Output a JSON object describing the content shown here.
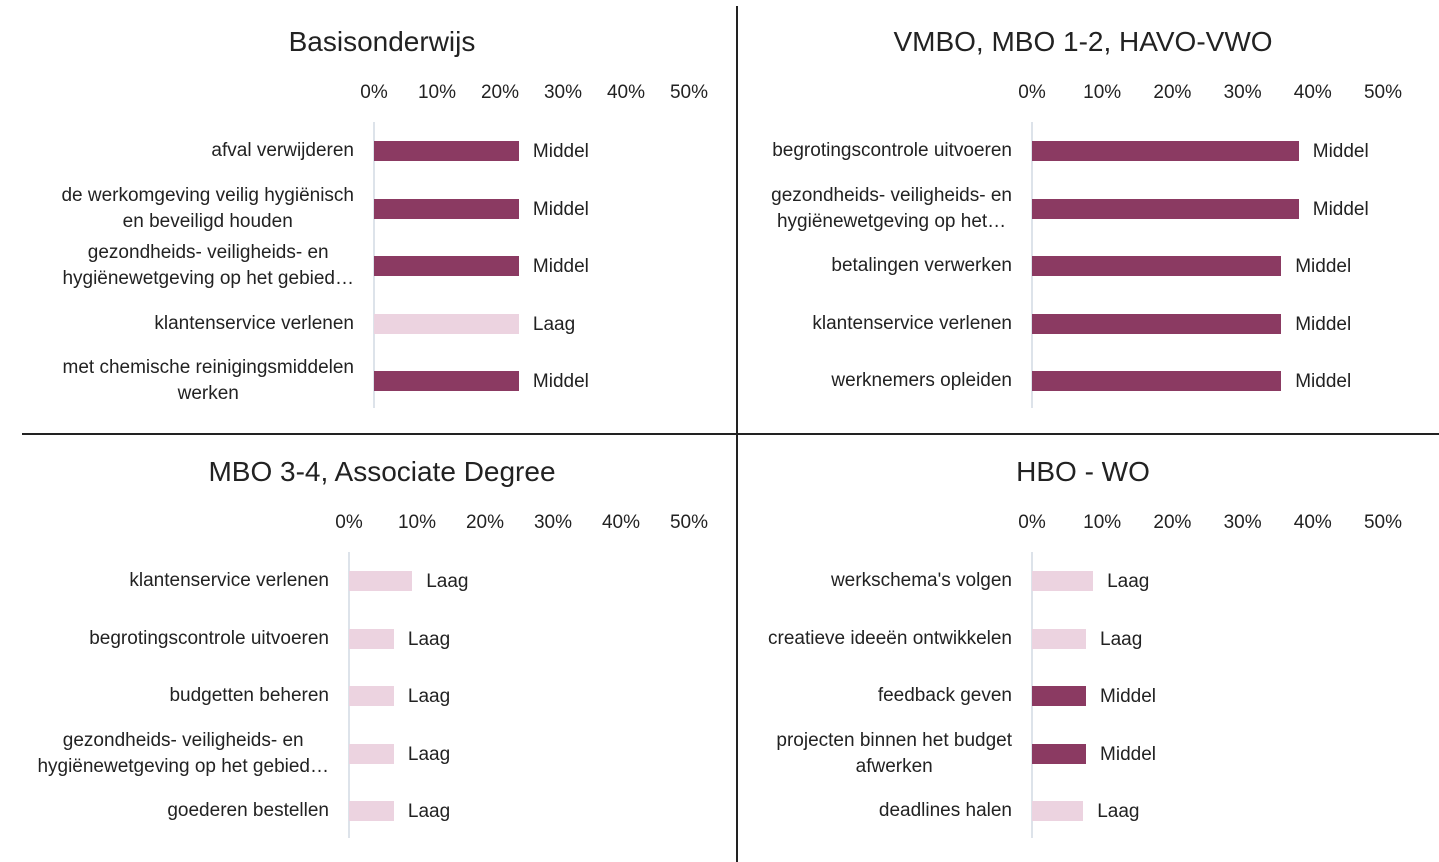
{
  "chart_data": [
    {
      "type": "bar",
      "orientation": "horizontal",
      "title": "Basisonderwijs",
      "categories": [
        "afval verwijderen",
        "de werkomgeving veilig  hygiënisch\nen beveiligd houden",
        "gezondheids-  veiligheids- en\nhygiënewetgeving op het gebied…",
        "klantenservice verlenen",
        "met chemische reinigingsmiddelen\nwerken"
      ],
      "values": [
        23,
        23,
        23,
        23,
        23
      ],
      "value_labels": [
        "Middel",
        "Middel",
        "Middel",
        "Laag",
        "Middel"
      ],
      "colors": [
        "#8b3a62",
        "#8b3a62",
        "#8b3a62",
        "#ecd3e0",
        "#8b3a62"
      ],
      "xlim": [
        0,
        50
      ],
      "xticks": [
        {
          "value": 0,
          "label": "0%"
        },
        {
          "value": 10,
          "label": "10%"
        },
        {
          "value": 20,
          "label": "20%"
        },
        {
          "value": 30,
          "label": "30%"
        },
        {
          "value": 40,
          "label": "40%"
        },
        {
          "value": 50,
          "label": "50%"
        }
      ]
    },
    {
      "type": "bar",
      "orientation": "horizontal",
      "title": "VMBO, MBO 1-2,  HAVO-VWO",
      "categories": [
        "begrotingscontrole uitvoeren",
        "gezondheids-  veiligheids- en\nhygiënewetgeving op het…",
        "betalingen verwerken",
        "klantenservice verlenen",
        "werknemers opleiden"
      ],
      "values": [
        38,
        38,
        35.5,
        35.5,
        35.5
      ],
      "value_labels": [
        "Middel",
        "Middel",
        "Middel",
        "Middel",
        "Middel"
      ],
      "colors": [
        "#8b3a62",
        "#8b3a62",
        "#8b3a62",
        "#8b3a62",
        "#8b3a62"
      ],
      "xlim": [
        0,
        50
      ],
      "xticks": [
        {
          "value": 0,
          "label": "0%"
        },
        {
          "value": 10,
          "label": "10%"
        },
        {
          "value": 20,
          "label": "20%"
        },
        {
          "value": 30,
          "label": "30%"
        },
        {
          "value": 40,
          "label": "40%"
        },
        {
          "value": 50,
          "label": "50%"
        }
      ]
    },
    {
      "type": "bar",
      "orientation": "horizontal",
      "title": "MBO 3-4, Associate Degree",
      "categories": [
        "klantenservice verlenen",
        "begrotingscontrole uitvoeren",
        "budgetten beheren",
        "gezondheids-  veiligheids- en\nhygiënewetgeving op het gebied…",
        "goederen bestellen"
      ],
      "values": [
        9.3,
        6.6,
        6.6,
        6.6,
        6.6
      ],
      "value_labels": [
        "Laag",
        "Laag",
        "Laag",
        "Laag",
        "Laag"
      ],
      "colors": [
        "#ecd3e0",
        "#ecd3e0",
        "#ecd3e0",
        "#ecd3e0",
        "#ecd3e0"
      ],
      "xlim": [
        0,
        50
      ],
      "xticks": [
        {
          "value": 0,
          "label": "0%"
        },
        {
          "value": 10,
          "label": "10%"
        },
        {
          "value": 20,
          "label": "20%"
        },
        {
          "value": 30,
          "label": "30%"
        },
        {
          "value": 40,
          "label": "40%"
        },
        {
          "value": 50,
          "label": "50%"
        }
      ]
    },
    {
      "type": "bar",
      "orientation": "horizontal",
      "title": "HBO - WO",
      "categories": [
        "werkschema's volgen",
        "creatieve ideeën ontwikkelen",
        "feedback geven",
        "projecten binnen het budget\nafwerken",
        "deadlines halen"
      ],
      "values": [
        8.7,
        7.7,
        7.7,
        7.7,
        7.3
      ],
      "value_labels": [
        "Laag",
        "Laag",
        "Middel",
        "Middel",
        "Laag"
      ],
      "colors": [
        "#ecd3e0",
        "#ecd3e0",
        "#8b3a62",
        "#8b3a62",
        "#ecd3e0"
      ],
      "xlim": [
        0,
        50
      ],
      "xticks": [
        {
          "value": 0,
          "label": "0%"
        },
        {
          "value": 10,
          "label": "10%"
        },
        {
          "value": 20,
          "label": "20%"
        },
        {
          "value": 30,
          "label": "30%"
        },
        {
          "value": 40,
          "label": "40%"
        },
        {
          "value": 50,
          "label": "50%"
        }
      ]
    }
  ]
}
